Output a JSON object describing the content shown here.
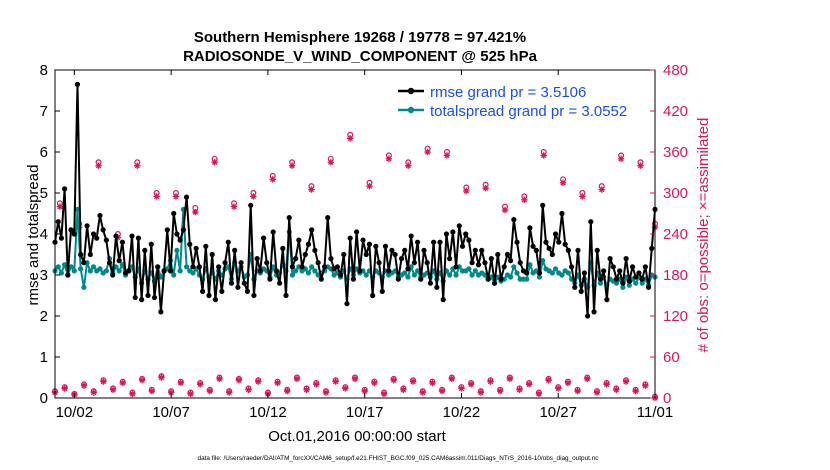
{
  "chart_data": {
    "type": "line",
    "title_line1": "Southern Hemisphere 19268 / 19778 = 97.421%",
    "title_line2": "RADIOSONDE_V_WIND_COMPONENT @ 525 hPa",
    "xlabel": "Oct.01,2016 00:00:00 start",
    "ylabel_left": "rmse and totalspread",
    "ylabel_right": "# of obs: o=possible; ×=assimilated",
    "footer": "data file: /Users/raeder/DAI/ATM_forcXX/CAM6_setup/f.e21.FHIST_BGC.f09_025.CAM6assim.011/Diags_NTrS_2016-10/obs_diag_output.nc",
    "x_ticks": [
      {
        "value": 2,
        "label": "10/02"
      },
      {
        "value": 7,
        "label": "10/07"
      },
      {
        "value": 12,
        "label": "10/12"
      },
      {
        "value": 17,
        "label": "10/17"
      },
      {
        "value": 22,
        "label": "10/22"
      },
      {
        "value": 27,
        "label": "10/27"
      },
      {
        "value": 32,
        "label": "11/01"
      }
    ],
    "xlim": [
      1,
      32
    ],
    "ylim_left": [
      0,
      8
    ],
    "ylim_right": [
      0,
      480
    ],
    "y_ticks_left": [
      "0",
      "1",
      "2",
      "3",
      "4",
      "5",
      "6",
      "7",
      "8"
    ],
    "y_ticks_right": [
      "0",
      "60",
      "120",
      "180",
      "240",
      "300",
      "360",
      "420",
      "480"
    ],
    "colors": {
      "rmse": "#000000",
      "spread": "#00898a",
      "obs": "#d6175f",
      "legend_text": "#1a4fe0"
    },
    "series": [
      {
        "name": "rmse grand pr = 3.5106",
        "values": [
          3.8,
          4.3,
          3.9,
          5.1,
          3.0,
          4.1,
          4.0,
          7.65,
          3.5,
          3.3,
          4.2,
          3.5,
          4.0,
          3.9,
          4.45,
          4.1,
          3.85,
          3.3,
          3.0,
          3.95,
          3.35,
          3.8,
          3.05,
          3.1,
          3.95,
          2.45,
          3.9,
          2.4,
          3.6,
          2.5,
          3.75,
          2.45,
          3.2,
          2.1,
          3.1,
          4.1,
          3.1,
          4.5,
          4.0,
          3.85,
          4.1,
          4.9,
          3.75,
          3.2,
          3.65,
          3.2,
          2.6,
          3.7,
          2.5,
          3.5,
          2.4,
          3.2,
          2.6,
          3.3,
          3.8,
          2.8,
          3.6,
          2.7,
          3.3,
          2.8,
          2.6,
          4.7,
          2.5,
          3.4,
          3.1,
          3.9,
          3.3,
          2.9,
          4.05,
          3.1,
          2.8,
          3.65,
          2.5,
          4.4,
          3.2,
          3.4,
          3.85,
          3.2,
          3.5,
          3.75,
          4.1,
          3.6,
          3.3,
          2.9,
          3.2,
          4.4,
          3.4,
          3.15,
          3.2,
          3.0,
          3.5,
          2.3,
          3.9,
          2.9,
          4.05,
          3.1,
          3.85,
          3.5,
          3.75,
          2.5,
          3.7,
          3.3,
          2.6,
          3.7,
          3.1,
          3.6,
          3.5,
          2.9,
          3.4,
          3.6,
          3.15,
          3.95,
          3.3,
          3.8,
          2.9,
          3.6,
          3.3,
          2.8,
          3.8,
          2.7,
          3.8,
          2.4,
          4.0,
          3.4,
          4.05,
          3.2,
          4.2,
          3.7,
          4.0,
          3.85,
          3.3,
          3.6,
          3.25,
          3.6,
          3.3,
          2.9,
          3.4,
          2.8,
          3.5,
          2.9,
          3.2,
          3.5,
          3.35,
          4.35,
          3.8,
          3.3,
          3.1,
          3.05,
          4.15,
          3.7,
          3.6,
          3.05,
          4.7,
          3.8,
          3.65,
          3.5,
          4.0,
          3.8,
          4.5,
          3.75,
          3.6,
          3.2,
          2.7,
          3.6,
          2.6,
          3.05,
          2.0,
          4.3,
          2.1,
          3.6,
          2.9,
          3.1,
          2.4,
          3.4,
          3.2,
          2.9,
          3.1,
          2.8,
          3.4,
          2.85,
          3.2,
          2.95,
          3.05,
          2.9,
          3.2,
          2.7,
          3.65,
          4.6
        ]
      },
      {
        "name": "totalspread grand pr = 3.0552",
        "values": [
          3.1,
          3.2,
          3.05,
          3.25,
          3.0,
          3.2,
          3.1,
          4.6,
          3.15,
          2.7,
          3.3,
          3.1,
          3.2,
          3.1,
          3.15,
          3.05,
          3.1,
          3.4,
          3.05,
          3.2,
          3.1,
          3.25,
          3.0,
          3.1,
          3.2,
          2.95,
          3.15,
          2.8,
          3.1,
          2.9,
          3.05,
          2.85,
          3.2,
          2.95,
          3.1,
          3.15,
          3.35,
          3.0,
          3.6,
          3.1,
          4.6,
          3.2,
          3.1,
          3.05,
          3.15,
          3.0,
          2.9,
          3.15,
          2.95,
          3.05,
          2.9,
          3.1,
          3.0,
          3.15,
          3.2,
          2.9,
          3.3,
          3.1,
          3.2,
          2.95,
          3.0,
          3.5,
          2.9,
          3.1,
          3.05,
          3.15,
          3.1,
          2.95,
          3.2,
          3.0,
          3.05,
          3.25,
          3.1,
          4.05,
          3.0,
          3.1,
          3.2,
          3.1,
          3.15,
          3.05,
          3.2,
          3.1,
          3.0,
          3.05,
          3.1,
          3.2,
          3.15,
          3.0,
          3.05,
          2.95,
          3.1,
          2.9,
          3.15,
          3.0,
          3.15,
          3.05,
          3.1,
          3.0,
          3.1,
          2.95,
          3.1,
          3.05,
          2.95,
          3.1,
          3.0,
          3.05,
          3.1,
          2.95,
          3.0,
          3.05,
          2.95,
          3.2,
          3.0,
          3.1,
          2.95,
          3.0,
          3.05,
          2.95,
          3.1,
          2.9,
          3.05,
          2.85,
          3.1,
          3.0,
          3.15,
          3.0,
          3.2,
          3.1,
          3.1,
          3.15,
          3.0,
          3.1,
          3.0,
          3.05,
          3.0,
          2.9,
          2.95,
          2.8,
          2.95,
          2.85,
          2.9,
          3.0,
          2.95,
          3.2,
          3.05,
          2.9,
          2.9,
          2.9,
          3.25,
          3.05,
          3.1,
          2.95,
          3.35,
          3.15,
          3.1,
          3.05,
          3.15,
          3.05,
          3.0,
          3.1,
          3.05,
          2.9,
          2.8,
          3.0,
          2.75,
          2.9,
          2.7,
          3.3,
          2.75,
          3.05,
          2.8,
          2.95,
          2.75,
          2.9,
          2.85,
          2.8,
          2.9,
          2.7,
          2.95,
          2.75,
          2.9,
          2.8,
          2.95,
          2.8,
          2.9,
          2.75,
          3.0,
          2.95
        ]
      }
    ],
    "obs_daily": {
      "x": [
        1.25,
        2.25,
        3.25,
        4.25,
        5.25,
        6.25,
        7.25,
        8.25,
        9.25,
        10.25,
        11.25,
        12.25,
        13.25,
        14.25,
        15.25,
        16.25,
        17.25,
        18.25,
        19.25,
        20.25,
        21.25,
        22.25,
        23.25,
        24.25,
        25.25,
        26.25,
        27.25,
        28.25,
        29.25,
        30.25,
        31.25,
        32.0
      ],
      "possible": [
        285,
        255,
        345,
        240,
        345,
        300,
        300,
        278,
        350,
        285,
        300,
        325,
        345,
        310,
        350,
        385,
        315,
        355,
        345,
        365,
        360,
        308,
        312,
        280,
        295,
        360,
        320,
        300,
        310,
        355,
        345,
        255
      ],
      "assimilated": [
        280,
        250,
        340,
        235,
        340,
        295,
        295,
        272,
        345,
        280,
        295,
        320,
        340,
        305,
        345,
        380,
        310,
        350,
        340,
        360,
        355,
        303,
        307,
        275,
        290,
        355,
        315,
        295,
        305,
        350,
        340,
        250
      ]
    },
    "obs_low": {
      "x": [
        1.0,
        1.5,
        2.0,
        2.5,
        3.0,
        3.5,
        4.0,
        4.5,
        5.0,
        5.5,
        6.0,
        6.5,
        7.0,
        7.5,
        8.0,
        8.5,
        9.0,
        9.5,
        10.0,
        10.5,
        11.0,
        11.5,
        12.0,
        12.5,
        13.0,
        13.5,
        14.0,
        14.5,
        15.0,
        15.5,
        16.0,
        16.5,
        17.0,
        17.5,
        18.0,
        18.5,
        19.0,
        19.5,
        20.0,
        20.5,
        21.0,
        21.5,
        22.0,
        22.5,
        23.0,
        23.5,
        24.0,
        24.5,
        25.0,
        25.5,
        26.0,
        26.5,
        27.0,
        27.5,
        28.0,
        28.5,
        29.0,
        29.5,
        30.0,
        30.5,
        31.0,
        31.5,
        32.0
      ],
      "possible": [
        10,
        16,
        6,
        20,
        10,
        26,
        14,
        24,
        8,
        28,
        12,
        32,
        10,
        24,
        8,
        22,
        12,
        30,
        10,
        28,
        14,
        26,
        8,
        24,
        12,
        30,
        14,
        22,
        10,
        26,
        16,
        30,
        12,
        24,
        8,
        28,
        14,
        26,
        10,
        24,
        12,
        30,
        16,
        22,
        10,
        26,
        12,
        30,
        14,
        22,
        8,
        28,
        16,
        24,
        12,
        30,
        10,
        22,
        14,
        26,
        12,
        20,
        2
      ],
      "assimilated": [
        8,
        14,
        5,
        18,
        8,
        24,
        12,
        22,
        6,
        26,
        10,
        30,
        8,
        22,
        6,
        20,
        10,
        28,
        8,
        26,
        12,
        24,
        6,
        22,
        10,
        28,
        12,
        20,
        8,
        24,
        14,
        28,
        10,
        22,
        6,
        26,
        12,
        24,
        8,
        22,
        10,
        28,
        14,
        20,
        8,
        24,
        10,
        28,
        12,
        20,
        6,
        26,
        14,
        22,
        10,
        28,
        8,
        20,
        12,
        24,
        10,
        18,
        0
      ]
    }
  }
}
